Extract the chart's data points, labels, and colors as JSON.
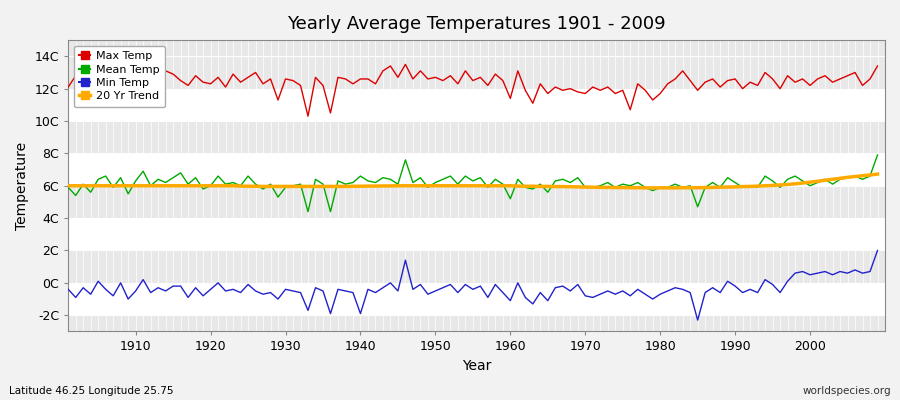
{
  "title": "Yearly Average Temperatures 1901 - 2009",
  "xlabel": "Year",
  "ylabel": "Temperature",
  "bottom_left": "Latitude 46.25 Longitude 25.75",
  "bottom_right": "worldspecies.org",
  "legend_labels": [
    "Max Temp",
    "Mean Temp",
    "Min Temp",
    "20 Yr Trend"
  ],
  "legend_colors": [
    "#dd0000",
    "#00aa00",
    "#2222cc",
    "#ffaa00"
  ],
  "ylim": [
    -3,
    15
  ],
  "yticks": [
    -2,
    0,
    2,
    4,
    6,
    8,
    10,
    12,
    14
  ],
  "ytick_labels": [
    "-2C",
    "0C",
    "2C",
    "4C",
    "6C",
    "8C",
    "10C",
    "12C",
    "14C"
  ],
  "xlim": [
    1901,
    2010
  ],
  "xticks": [
    1910,
    1920,
    1930,
    1940,
    1950,
    1960,
    1970,
    1980,
    1990,
    2000
  ],
  "bg_color": "#f2f2f2",
  "plot_bg_light": "#e8e8e8",
  "plot_bg_dark": "#d8d8d8",
  "grid_color": "#ffffff",
  "years": [
    1901,
    1902,
    1903,
    1904,
    1905,
    1906,
    1907,
    1908,
    1909,
    1910,
    1911,
    1912,
    1913,
    1914,
    1915,
    1916,
    1917,
    1918,
    1919,
    1920,
    1921,
    1922,
    1923,
    1924,
    1925,
    1926,
    1927,
    1928,
    1929,
    1930,
    1931,
    1932,
    1933,
    1934,
    1935,
    1936,
    1937,
    1938,
    1939,
    1940,
    1941,
    1942,
    1943,
    1944,
    1945,
    1946,
    1947,
    1948,
    1949,
    1950,
    1951,
    1952,
    1953,
    1954,
    1955,
    1956,
    1957,
    1958,
    1959,
    1960,
    1961,
    1962,
    1963,
    1964,
    1965,
    1966,
    1967,
    1968,
    1969,
    1970,
    1971,
    1972,
    1973,
    1974,
    1975,
    1976,
    1977,
    1978,
    1979,
    1980,
    1981,
    1982,
    1983,
    1984,
    1985,
    1986,
    1987,
    1988,
    1989,
    1990,
    1991,
    1992,
    1993,
    1994,
    1995,
    1996,
    1997,
    1998,
    1999,
    2000,
    2001,
    2002,
    2003,
    2004,
    2005,
    2006,
    2007,
    2008,
    2009
  ],
  "max_temp": [
    12.1,
    12.8,
    12.4,
    12.7,
    13.1,
    12.5,
    12.2,
    12.8,
    11.9,
    12.6,
    13.0,
    12.3,
    12.7,
    13.1,
    12.9,
    12.5,
    12.2,
    12.8,
    12.4,
    12.3,
    12.7,
    12.1,
    12.9,
    12.4,
    12.7,
    13.0,
    12.3,
    12.6,
    11.3,
    12.6,
    12.5,
    12.2,
    10.3,
    12.7,
    12.2,
    10.5,
    12.7,
    12.6,
    12.3,
    12.6,
    12.6,
    12.3,
    13.1,
    13.4,
    12.7,
    13.5,
    12.6,
    13.1,
    12.6,
    12.7,
    12.5,
    12.8,
    12.3,
    13.1,
    12.5,
    12.7,
    12.2,
    12.9,
    12.5,
    11.4,
    13.1,
    11.9,
    11.1,
    12.3,
    11.7,
    12.1,
    11.9,
    12.0,
    11.8,
    11.7,
    12.1,
    11.9,
    12.1,
    11.7,
    11.9,
    10.7,
    12.3,
    11.9,
    11.3,
    11.7,
    12.3,
    12.6,
    13.1,
    12.5,
    11.9,
    12.4,
    12.6,
    12.1,
    12.5,
    12.6,
    12.0,
    12.4,
    12.2,
    13.0,
    12.6,
    12.0,
    12.8,
    12.4,
    12.6,
    12.2,
    12.6,
    12.8,
    12.4,
    12.6,
    12.8,
    13.0,
    12.2,
    12.6,
    13.4
  ],
  "mean_temp": [
    5.9,
    5.4,
    6.1,
    5.6,
    6.4,
    6.6,
    5.9,
    6.5,
    5.5,
    6.3,
    6.9,
    6.0,
    6.4,
    6.2,
    6.5,
    6.8,
    6.1,
    6.5,
    5.8,
    6.0,
    6.6,
    6.1,
    6.2,
    6.0,
    6.6,
    6.1,
    5.8,
    6.1,
    5.3,
    5.9,
    6.0,
    6.1,
    4.4,
    6.4,
    6.1,
    4.4,
    6.3,
    6.1,
    6.2,
    6.6,
    6.3,
    6.2,
    6.5,
    6.4,
    6.1,
    7.6,
    6.2,
    6.5,
    5.9,
    6.2,
    6.4,
    6.6,
    6.1,
    6.6,
    6.3,
    6.5,
    5.9,
    6.4,
    6.1,
    5.2,
    6.4,
    5.9,
    5.8,
    6.1,
    5.6,
    6.3,
    6.4,
    6.2,
    6.5,
    5.9,
    5.9,
    6.0,
    6.2,
    5.9,
    6.1,
    6.0,
    6.2,
    5.9,
    5.7,
    5.9,
    5.9,
    6.1,
    5.9,
    6.0,
    4.7,
    5.9,
    6.2,
    5.9,
    6.5,
    6.2,
    5.9,
    6.0,
    5.9,
    6.6,
    6.3,
    5.9,
    6.4,
    6.6,
    6.3,
    6.0,
    6.2,
    6.4,
    6.1,
    6.4,
    6.5,
    6.6,
    6.4,
    6.6,
    7.9
  ],
  "min_temp": [
    -0.4,
    -0.9,
    -0.3,
    -0.7,
    0.1,
    -0.4,
    -0.8,
    0.0,
    -1.0,
    -0.5,
    0.2,
    -0.6,
    -0.3,
    -0.5,
    -0.2,
    -0.2,
    -0.9,
    -0.3,
    -0.8,
    -0.4,
    0.0,
    -0.5,
    -0.4,
    -0.6,
    -0.1,
    -0.5,
    -0.7,
    -0.6,
    -1.0,
    -0.4,
    -0.5,
    -0.6,
    -1.7,
    -0.3,
    -0.5,
    -1.9,
    -0.4,
    -0.5,
    -0.6,
    -1.9,
    -0.4,
    -0.6,
    -0.3,
    0.0,
    -0.5,
    1.4,
    -0.4,
    -0.1,
    -0.7,
    -0.5,
    -0.3,
    -0.1,
    -0.6,
    -0.1,
    -0.4,
    -0.2,
    -0.9,
    -0.1,
    -0.6,
    -1.1,
    0.0,
    -0.9,
    -1.3,
    -0.6,
    -1.1,
    -0.3,
    -0.2,
    -0.5,
    -0.1,
    -0.8,
    -0.9,
    -0.7,
    -0.5,
    -0.7,
    -0.5,
    -0.8,
    -0.4,
    -0.7,
    -1.0,
    -0.7,
    -0.5,
    -0.3,
    -0.4,
    -0.6,
    -2.3,
    -0.6,
    -0.3,
    -0.6,
    0.1,
    -0.2,
    -0.6,
    -0.4,
    -0.6,
    0.2,
    -0.1,
    -0.6,
    0.1,
    0.6,
    0.7,
    0.5,
    0.6,
    0.7,
    0.5,
    0.7,
    0.6,
    0.8,
    0.6,
    0.7,
    2.0
  ],
  "trend_mean": [
    6.0,
    6.0,
    6.0,
    6.0,
    6.0,
    6.0,
    6.0,
    6.0,
    6.0,
    6.0,
    6.0,
    6.0,
    6.0,
    6.0,
    6.0,
    6.0,
    6.0,
    6.0,
    6.0,
    6.0,
    6.0,
    6.0,
    6.0,
    5.98,
    5.97,
    5.97,
    5.96,
    5.96,
    5.96,
    5.96,
    5.96,
    5.96,
    5.96,
    5.96,
    5.96,
    5.96,
    5.96,
    5.96,
    5.97,
    5.97,
    5.98,
    5.98,
    5.99,
    5.99,
    6.0,
    6.0,
    6.0,
    6.0,
    6.0,
    6.0,
    6.0,
    6.0,
    6.0,
    6.0,
    6.0,
    6.0,
    6.0,
    6.0,
    6.0,
    6.0,
    5.98,
    5.97,
    5.97,
    5.96,
    5.96,
    5.95,
    5.95,
    5.94,
    5.93,
    5.92,
    5.91,
    5.9,
    5.9,
    5.89,
    5.89,
    5.88,
    5.88,
    5.87,
    5.87,
    5.87,
    5.87,
    5.87,
    5.88,
    5.88,
    5.88,
    5.89,
    5.9,
    5.91,
    5.92,
    5.93,
    5.95,
    5.96,
    5.98,
    6.0,
    6.02,
    6.05,
    6.08,
    6.12,
    6.17,
    6.22,
    6.28,
    6.34,
    6.4,
    6.46,
    6.52,
    6.57,
    6.62,
    6.67,
    6.72
  ]
}
